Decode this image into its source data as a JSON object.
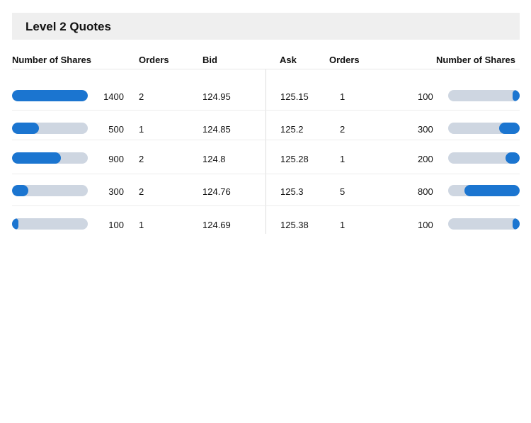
{
  "title": "Level 2 Quotes",
  "columns": {
    "bid_shares": "Number of Shares",
    "bid_orders": "Orders",
    "bid": "Bid",
    "ask": "Ask",
    "ask_orders": "Orders",
    "ask_shares": "Number of Shares"
  },
  "colors": {
    "bar_fill": "#1b75d0",
    "bar_track": "#ced6e1",
    "header_bg": "#efefef"
  },
  "max_shares": 1400,
  "rows": [
    {
      "bid_shares": "1400",
      "bid_orders": "2",
      "bid": "124.95",
      "ask": "125.15",
      "ask_orders": "1",
      "ask_shares": "100"
    },
    {
      "bid_shares": "500",
      "bid_orders": "1",
      "bid": "124.85",
      "ask": "125.2",
      "ask_orders": "2",
      "ask_shares": "300"
    },
    {
      "bid_shares": "900",
      "bid_orders": "2",
      "bid": "124.8",
      "ask": "125.28",
      "ask_orders": "1",
      "ask_shares": "200"
    },
    {
      "bid_shares": "300",
      "bid_orders": "2",
      "bid": "124.76",
      "ask": "125.3",
      "ask_orders": "5",
      "ask_shares": "800"
    },
    {
      "bid_shares": "100",
      "bid_orders": "1",
      "bid": "124.69",
      "ask": "125.38",
      "ask_orders": "1",
      "ask_shares": "100"
    }
  ]
}
